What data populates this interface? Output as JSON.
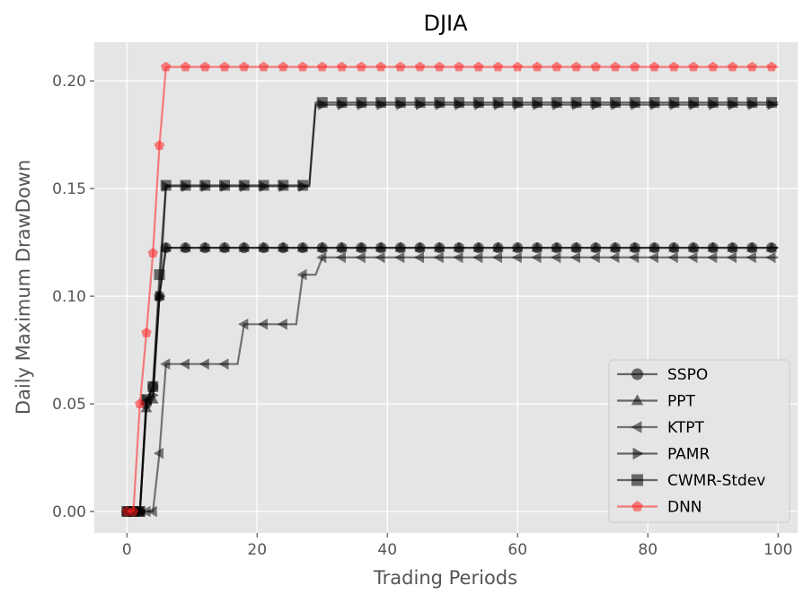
{
  "chart_data": {
    "type": "line",
    "title": "DJIA",
    "xlabel": "Trading Periods",
    "ylabel": "Daily Maximum DrawDown",
    "xlim": [
      -5,
      103
    ],
    "ylim": [
      -0.01,
      0.218
    ],
    "xticks": [
      0,
      20,
      40,
      60,
      80,
      100
    ],
    "yticks": [
      0.0,
      0.05,
      0.1,
      0.15,
      0.2
    ],
    "xtick_labels": [
      "0",
      "20",
      "40",
      "60",
      "80",
      "100"
    ],
    "ytick_labels": [
      "0.00",
      "0.05",
      "0.10",
      "0.15",
      "0.20"
    ],
    "grid": true,
    "legend_position": "lower-right",
    "background": "#e5e5e5",
    "series": [
      {
        "name": "SSPO",
        "marker": "circle",
        "color": "#000000",
        "opacity": 0.55,
        "points": [
          [
            0,
            0
          ],
          [
            1,
            0
          ],
          [
            2,
            0
          ],
          [
            3,
            0.05
          ],
          [
            4,
            0.058
          ],
          [
            5,
            0.1
          ],
          [
            6,
            0.1225
          ],
          [
            100,
            0.1225
          ]
        ]
      },
      {
        "name": "PPT",
        "marker": "triangle-up",
        "color": "#000000",
        "opacity": 0.55,
        "points": [
          [
            0,
            0
          ],
          [
            1,
            0
          ],
          [
            2,
            0
          ],
          [
            3,
            0.048
          ],
          [
            4,
            0.052
          ],
          [
            5,
            0.1
          ],
          [
            6,
            0.1225
          ],
          [
            100,
            0.1225
          ]
        ]
      },
      {
        "name": "KTPT",
        "marker": "triangle-left",
        "color": "#000000",
        "opacity": 0.5,
        "points": [
          [
            0,
            0
          ],
          [
            1,
            0
          ],
          [
            2,
            0
          ],
          [
            3,
            0
          ],
          [
            4,
            0
          ],
          [
            5,
            0.027
          ],
          [
            6,
            0.0685
          ],
          [
            17,
            0.0685
          ],
          [
            18,
            0.087
          ],
          [
            26,
            0.087
          ],
          [
            27,
            0.11
          ],
          [
            29,
            0.11
          ],
          [
            30,
            0.118
          ],
          [
            100,
            0.118
          ]
        ]
      },
      {
        "name": "PAMR",
        "marker": "triangle-right",
        "color": "#000000",
        "opacity": 0.55,
        "points": [
          [
            0,
            0
          ],
          [
            1,
            0
          ],
          [
            2,
            0
          ],
          [
            3,
            0.052
          ],
          [
            4,
            0.054
          ],
          [
            5,
            0.1
          ],
          [
            6,
            0.151
          ],
          [
            28,
            0.151
          ],
          [
            29,
            0.189
          ],
          [
            100,
            0.189
          ]
        ]
      },
      {
        "name": "CWMR-Stdev",
        "marker": "square",
        "color": "#000000",
        "opacity": 0.55,
        "points": [
          [
            0,
            0
          ],
          [
            1,
            0
          ],
          [
            2,
            0
          ],
          [
            3,
            0.052
          ],
          [
            4,
            0.058
          ],
          [
            5,
            0.11
          ],
          [
            6,
            0.1515
          ],
          [
            28,
            0.1515
          ],
          [
            29,
            0.19
          ],
          [
            100,
            0.19
          ]
        ]
      },
      {
        "name": "DNN",
        "marker": "pentagon",
        "color": "#ff2222",
        "opacity": 0.55,
        "points": [
          [
            0,
            0
          ],
          [
            1,
            0
          ],
          [
            2,
            0.05
          ],
          [
            3,
            0.083
          ],
          [
            4,
            0.12
          ],
          [
            5,
            0.17
          ],
          [
            6,
            0.2065
          ],
          [
            100,
            0.2065
          ]
        ]
      }
    ]
  }
}
